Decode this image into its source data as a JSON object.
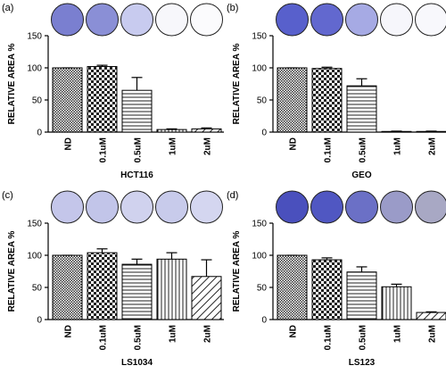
{
  "chart_data": [
    {
      "type": "bar",
      "panel": "(a)",
      "ylabel": "RELATIVE AREA %",
      "xlabel": "HCT116",
      "categories": [
        "ND",
        "0.1uM",
        "0.5uM",
        "1uM",
        "2uM"
      ],
      "values": [
        100,
        102,
        65,
        4,
        5
      ],
      "errors": [
        0,
        2,
        20,
        1,
        1.5
      ],
      "well_colors": [
        "#7a7fd0",
        "#8a8fd6",
        "#c8cbef",
        "#f7f7fb",
        "#fbfbfd"
      ],
      "ylim": [
        0,
        150
      ],
      "yticks": [
        0,
        50,
        100,
        150
      ]
    },
    {
      "type": "bar",
      "panel": "(b)",
      "ylabel": "RELATIVE AREA %",
      "xlabel": "GEO",
      "categories": [
        "ND",
        "0.1uM",
        "0.5uM",
        "1uM",
        "2uM"
      ],
      "values": [
        100,
        99,
        72,
        1,
        1
      ],
      "errors": [
        0,
        2,
        11,
        0.5,
        0.5
      ],
      "well_colors": [
        "#5860cc",
        "#6268cf",
        "#a6aae4",
        "#f6f6fb",
        "#f8f8fc"
      ],
      "ylim": [
        0,
        150
      ],
      "yticks": [
        0,
        50,
        100,
        150
      ]
    },
    {
      "type": "bar",
      "panel": "(c)",
      "ylabel": "RELATIVE AREA %",
      "xlabel": "LS1034",
      "categories": [
        "ND",
        "0.1uM",
        "0.5uM",
        "1uM",
        "2uM"
      ],
      "values": [
        100,
        104,
        86,
        94,
        67
      ],
      "errors": [
        0,
        6,
        8,
        10,
        26
      ],
      "well_colors": [
        "#c4c6ea",
        "#c2c5e9",
        "#d0d2ee",
        "#c8cbeb",
        "#d4d6f0"
      ],
      "ylim": [
        0,
        150
      ],
      "yticks": [
        0,
        50,
        100,
        150
      ]
    },
    {
      "type": "bar",
      "panel": "(d)",
      "ylabel": "RELATIVE AREA %",
      "xlabel": "LS123",
      "categories": [
        "ND",
        "0.1uM",
        "0.5uM",
        "1uM",
        "2uM"
      ],
      "values": [
        100,
        93,
        74,
        51,
        11
      ],
      "errors": [
        0,
        3,
        8,
        4,
        1
      ],
      "well_colors": [
        "#4a50bd",
        "#5057c2",
        "#6b70c6",
        "#9a9bc8",
        "#a8a8c4"
      ],
      "ylim": [
        0,
        150
      ],
      "yticks": [
        0,
        50,
        100,
        150
      ]
    }
  ]
}
